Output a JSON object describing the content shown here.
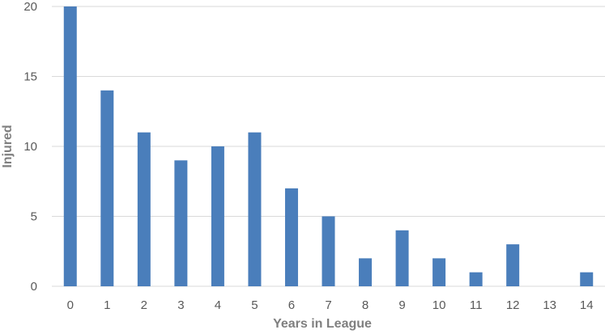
{
  "chart_data": {
    "type": "bar",
    "title": "",
    "xlabel": "Years in League",
    "ylabel": "Injured",
    "categories": [
      "0",
      "1",
      "2",
      "3",
      "4",
      "5",
      "6",
      "7",
      "8",
      "9",
      "10",
      "11",
      "12",
      "13",
      "14"
    ],
    "values": [
      20,
      14,
      11,
      9,
      10,
      11,
      7,
      5,
      2,
      4,
      2,
      1,
      3,
      0,
      1
    ],
    "ylim": [
      0,
      20
    ],
    "yticks": [
      0,
      5,
      10,
      15,
      20
    ],
    "grid": true,
    "legend": "none",
    "bar_color": "#4a7ebb",
    "gridline_color": "#d9d9d9"
  }
}
